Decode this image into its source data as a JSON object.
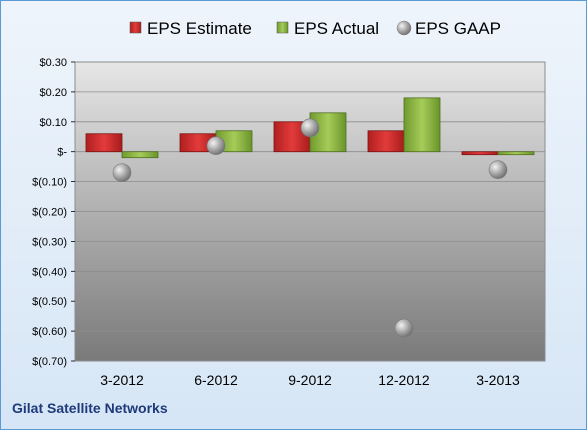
{
  "chart_data": {
    "type": "bar",
    "categories": [
      "3-2012",
      "6-2012",
      "9-2012",
      "12-2012",
      "3-2013"
    ],
    "series": [
      {
        "name": "EPS Estimate",
        "kind": "bar",
        "color": "#cc2b2b",
        "values": [
          0.06,
          0.06,
          0.1,
          0.07,
          -0.01
        ]
      },
      {
        "name": "EPS Actual",
        "kind": "bar",
        "color": "#8db33f",
        "values": [
          -0.02,
          0.07,
          0.13,
          0.18,
          -0.01
        ]
      },
      {
        "name": "EPS GAAP",
        "kind": "marker",
        "color": "#a6a6a6",
        "values": [
          -0.07,
          0.02,
          0.08,
          -0.59,
          -0.06
        ]
      }
    ],
    "ylim": [
      -0.7,
      0.3
    ],
    "yticks": [
      0.3,
      0.2,
      0.1,
      0.0,
      -0.1,
      -0.2,
      -0.3,
      -0.4,
      -0.5,
      -0.6,
      -0.7
    ],
    "ytick_labels": [
      "$0.30",
      "$0.20",
      "$0.10",
      "$-",
      "$(0.10)",
      "$(0.20)",
      "$(0.30)",
      "$(0.40)",
      "$(0.50)",
      "$(0.60)",
      "$(0.70)"
    ],
    "legend_position": "top",
    "grid": true
  },
  "footer": {
    "company": "Gilat Satellite Networks"
  }
}
